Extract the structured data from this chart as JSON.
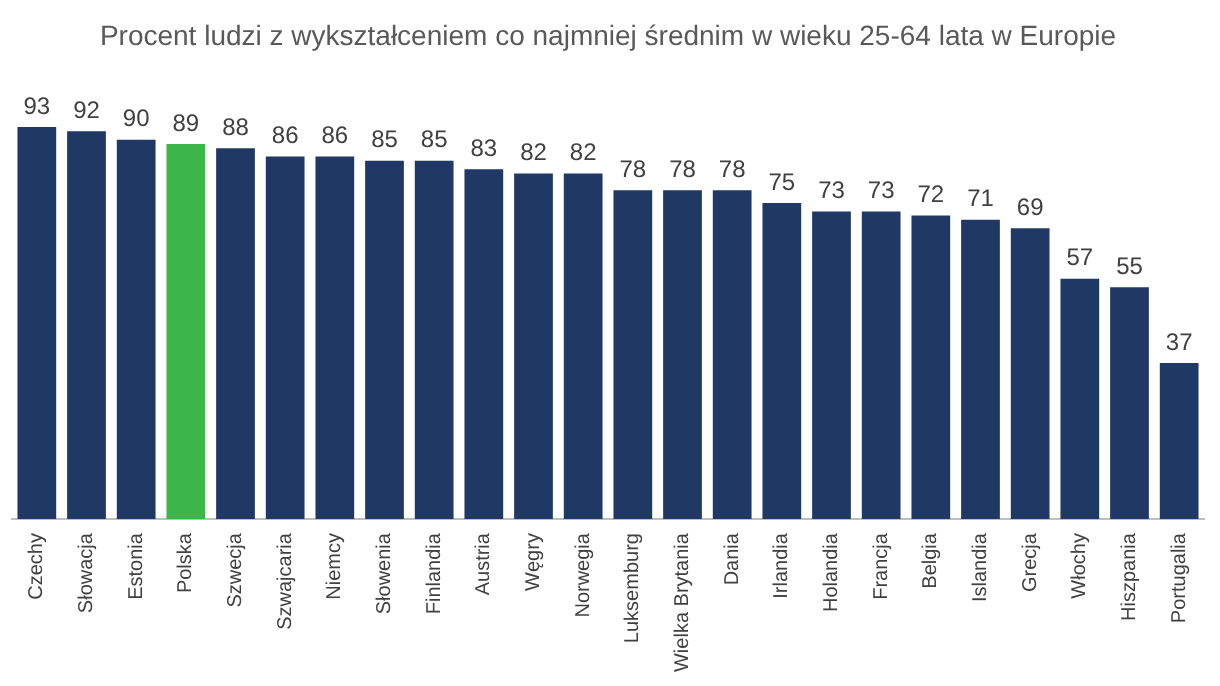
{
  "chart_data": {
    "type": "bar",
    "title": "Procent ludzi z wykształceniem co najmniej średnim w wieku 25-64 lata w Europie",
    "categories": [
      "Czechy",
      "Słowacja",
      "Estonia",
      "Polska",
      "Szwecja",
      "Szwajcaria",
      "Niemcy",
      "Słowenia",
      "Finlandia",
      "Austria",
      "Węgry",
      "Norwegia",
      "Luksemburg",
      "Wielka Brytania",
      "Dania",
      "Irlandia",
      "Holandia",
      "Francja",
      "Belgia",
      "Islandia",
      "Grecja",
      "Włochy",
      "Hiszpania",
      "Portugalia"
    ],
    "values": [
      93,
      92,
      90,
      89,
      88,
      86,
      86,
      85,
      85,
      83,
      82,
      82,
      78,
      78,
      78,
      75,
      73,
      73,
      72,
      71,
      69,
      57,
      55,
      37
    ],
    "colors": [
      "#203864",
      "#203864",
      "#203864",
      "#3cb54a",
      "#203864",
      "#203864",
      "#203864",
      "#203864",
      "#203864",
      "#203864",
      "#203864",
      "#203864",
      "#203864",
      "#203864",
      "#203864",
      "#203864",
      "#203864",
      "#203864",
      "#203864",
      "#203864",
      "#203864",
      "#203864",
      "#203864",
      "#203864"
    ],
    "data_labels": true,
    "grid": false,
    "legend": false
  }
}
